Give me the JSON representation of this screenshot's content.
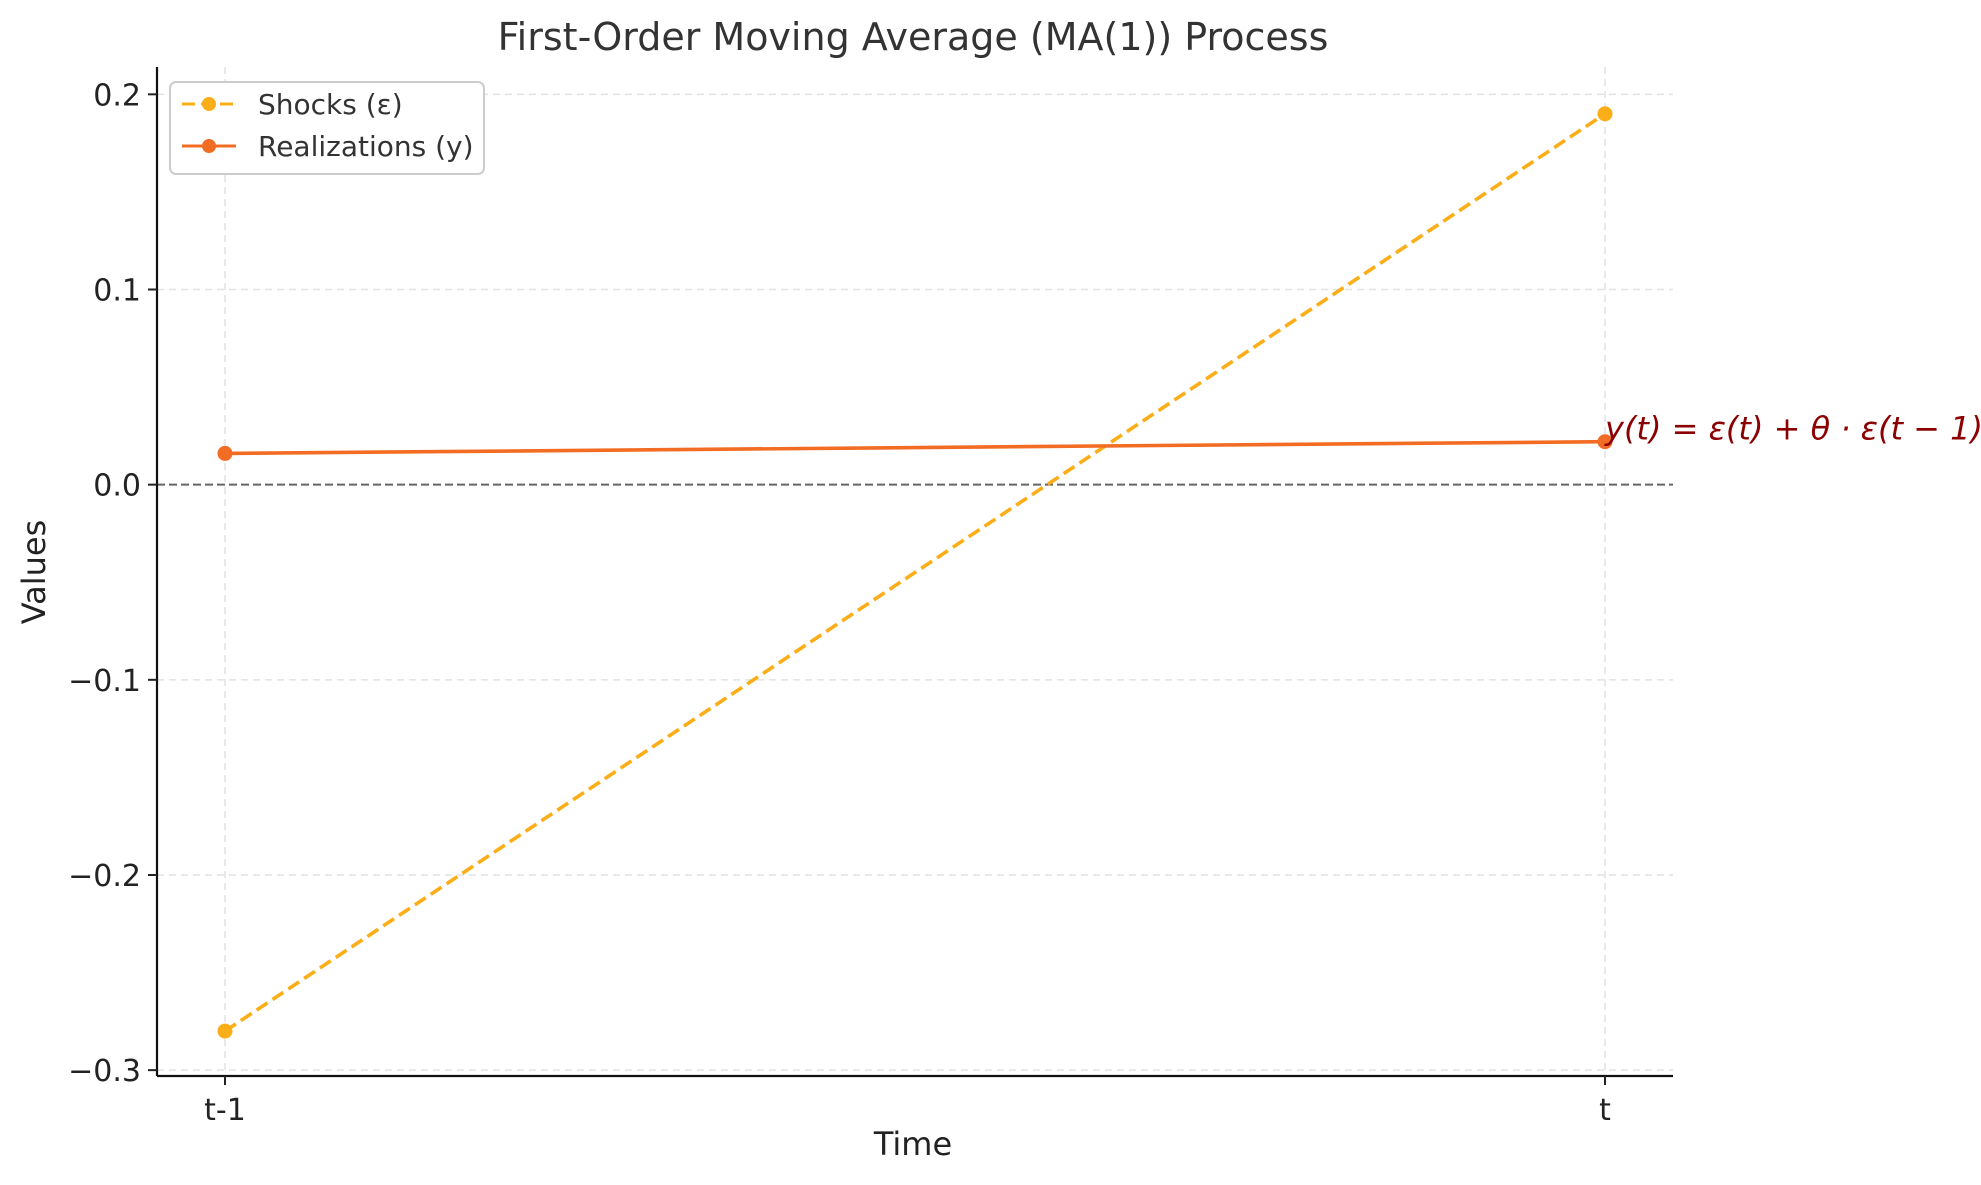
{
  "chart_data": {
    "type": "line",
    "title": "First-Order Moving Average (MA(1)) Process",
    "xlabel": "Time",
    "ylabel": "Values",
    "categories": [
      "t-1",
      "t"
    ],
    "ylim": [
      -0.303,
      0.214
    ],
    "yticks": [
      0.2,
      0.1,
      0.0,
      -0.1,
      -0.2,
      -0.3
    ],
    "ytick_labels": [
      "0.2",
      "0.1",
      "0.0",
      "−0.1",
      "−0.2",
      "−0.3"
    ],
    "grid": true,
    "legend_position": "top-left",
    "reference_line": {
      "y": 0.0,
      "style": "dashed",
      "color": "#666666"
    },
    "series": [
      {
        "name": "Shocks (ε)",
        "values": [
          -0.28,
          0.19
        ],
        "color": "#fcae18",
        "dashed": true
      },
      {
        "name": "Realizations (y)",
        "values": [
          0.016,
          0.022
        ],
        "color": "#f26c23",
        "dashed": false
      }
    ],
    "annotation": {
      "text": "y(t) = ε(t) + θ · ε(t − 1)",
      "anchor_category": "t",
      "anchor_value": 0.022,
      "color": "#8b0000"
    }
  }
}
